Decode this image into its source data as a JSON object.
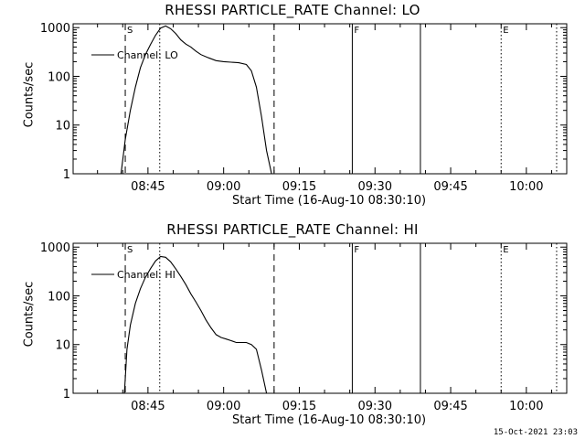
{
  "footer": {
    "timestamp": "15-Oct-2021 23:03"
  },
  "chart_data": [
    {
      "type": "line",
      "title": "RHESSI PARTICLE_RATE Channel: LO",
      "xlabel": "Start Time (16-Aug-10 08:30:10)",
      "ylabel": "Counts/sec",
      "yscale": "log",
      "ylim": [
        1,
        1200
      ],
      "xlim": [
        "08:30:10",
        "10:08:00"
      ],
      "x_ticks": [
        "08:45",
        "09:00",
        "09:15",
        "09:30",
        "09:45",
        "10:00"
      ],
      "y_ticks": [
        "1",
        "10",
        "100",
        "1000"
      ],
      "legend": "Channel: LO",
      "legend_position": "top-left",
      "markers": [
        {
          "time": "08:40:30",
          "style": "dashed",
          "label": "S"
        },
        {
          "time": "08:47:20",
          "style": "dotted",
          "label": ""
        },
        {
          "time": "09:10:00",
          "style": "dashed",
          "label": ""
        },
        {
          "time": "09:25:30",
          "style": "solid",
          "label": "F"
        },
        {
          "time": "09:39:00",
          "style": "solid",
          "label": ""
        },
        {
          "time": "09:55:00",
          "style": "dotted",
          "label": "E"
        },
        {
          "time": "10:06:00",
          "style": "dotted",
          "label": ""
        }
      ],
      "series": [
        {
          "name": "Channel: LO",
          "x": [
            "08:39:40",
            "08:40:30",
            "08:41:30",
            "08:42:30",
            "08:43:30",
            "08:44:30",
            "08:45:30",
            "08:46:30",
            "08:47:30",
            "08:48:30",
            "08:49:30",
            "08:50:30",
            "08:51:30",
            "08:52:30",
            "08:53:30",
            "08:54:30",
            "08:55:30",
            "08:57:00",
            "08:58:30",
            "09:00:00",
            "09:01:30",
            "09:03:00",
            "09:04:30",
            "09:05:30",
            "09:06:30",
            "09:07:30",
            "09:08:30",
            "09:09:30"
          ],
          "y": [
            1,
            5,
            20,
            60,
            150,
            280,
            450,
            700,
            980,
            1080,
            950,
            760,
            560,
            460,
            400,
            330,
            280,
            240,
            210,
            200,
            195,
            190,
            175,
            130,
            60,
            15,
            3,
            1
          ]
        }
      ]
    },
    {
      "type": "line",
      "title": "RHESSI PARTICLE_RATE Channel: HI",
      "xlabel": "Start Time (16-Aug-10 08:30:10)",
      "ylabel": "Counts/sec",
      "yscale": "log",
      "ylim": [
        1,
        1200
      ],
      "xlim": [
        "08:30:10",
        "10:08:00"
      ],
      "x_ticks": [
        "08:45",
        "09:00",
        "09:15",
        "09:30",
        "09:45",
        "10:00"
      ],
      "y_ticks": [
        "1",
        "10",
        "100",
        "1000"
      ],
      "legend": "Channel: HI",
      "legend_position": "top-left",
      "markers": [
        {
          "time": "08:40:30",
          "style": "dashed",
          "label": "S"
        },
        {
          "time": "08:47:20",
          "style": "dotted",
          "label": ""
        },
        {
          "time": "09:10:00",
          "style": "dashed",
          "label": ""
        },
        {
          "time": "09:25:30",
          "style": "solid",
          "label": "F"
        },
        {
          "time": "09:39:00",
          "style": "solid",
          "label": ""
        },
        {
          "time": "09:55:00",
          "style": "dotted",
          "label": "E"
        },
        {
          "time": "10:06:00",
          "style": "dotted",
          "label": ""
        }
      ],
      "series": [
        {
          "name": "Channel: HI",
          "x": [
            "08:40:20",
            "08:40:50",
            "08:41:30",
            "08:42:30",
            "08:43:30",
            "08:44:30",
            "08:45:30",
            "08:46:30",
            "08:47:30",
            "08:48:30",
            "08:49:30",
            "08:50:30",
            "08:51:30",
            "08:52:30",
            "08:53:30",
            "08:54:30",
            "08:55:30",
            "08:56:30",
            "08:57:30",
            "08:58:30",
            "08:59:30",
            "09:00:30",
            "09:01:30",
            "09:02:30",
            "09:03:30",
            "09:04:30",
            "09:05:30",
            "09:06:30",
            "09:07:30",
            "09:08:30"
          ],
          "y": [
            1,
            8,
            25,
            70,
            140,
            240,
            360,
            520,
            640,
            620,
            500,
            360,
            250,
            170,
            110,
            75,
            50,
            32,
            22,
            16,
            14,
            13,
            12,
            11,
            11,
            11,
            10,
            8,
            3,
            1
          ]
        }
      ]
    }
  ]
}
